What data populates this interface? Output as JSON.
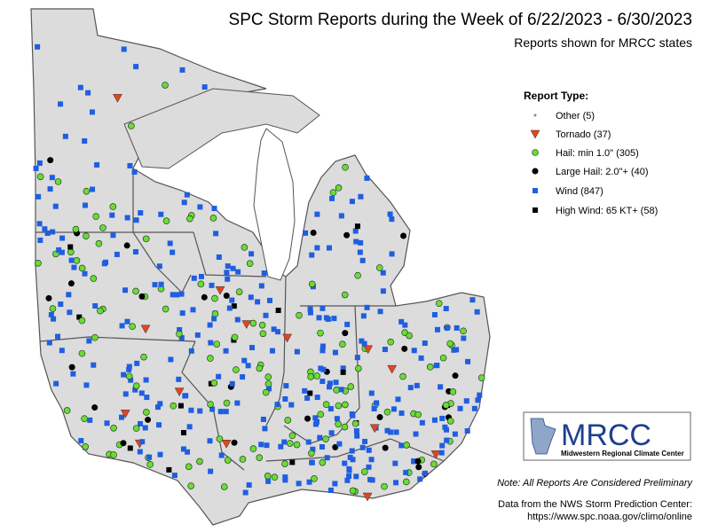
{
  "header": {
    "title": "SPC Storm Reports during the Week of 6/22/2023 - 6/30/2023",
    "subtitle": "Reports shown for MRCC states"
  },
  "legend": {
    "title": "Report Type:",
    "items": [
      "Other (5)",
      "Tornado (37)",
      "Hail: min 1.0\" (305)",
      "Large Hail: 2.0\"+ (40)",
      "Wind (847)",
      "High Wind: 65 KT+ (58)"
    ]
  },
  "logo": {
    "name": "MRCC",
    "full_name": "Midwestern Regional Climate Center"
  },
  "footer": {
    "note": "Note: All Reports Are Considered Preliminary",
    "source": "Data from the NWS Storm Prediction Center:",
    "url": "https://www.spc.noaa.gov/climo/online"
  }
}
